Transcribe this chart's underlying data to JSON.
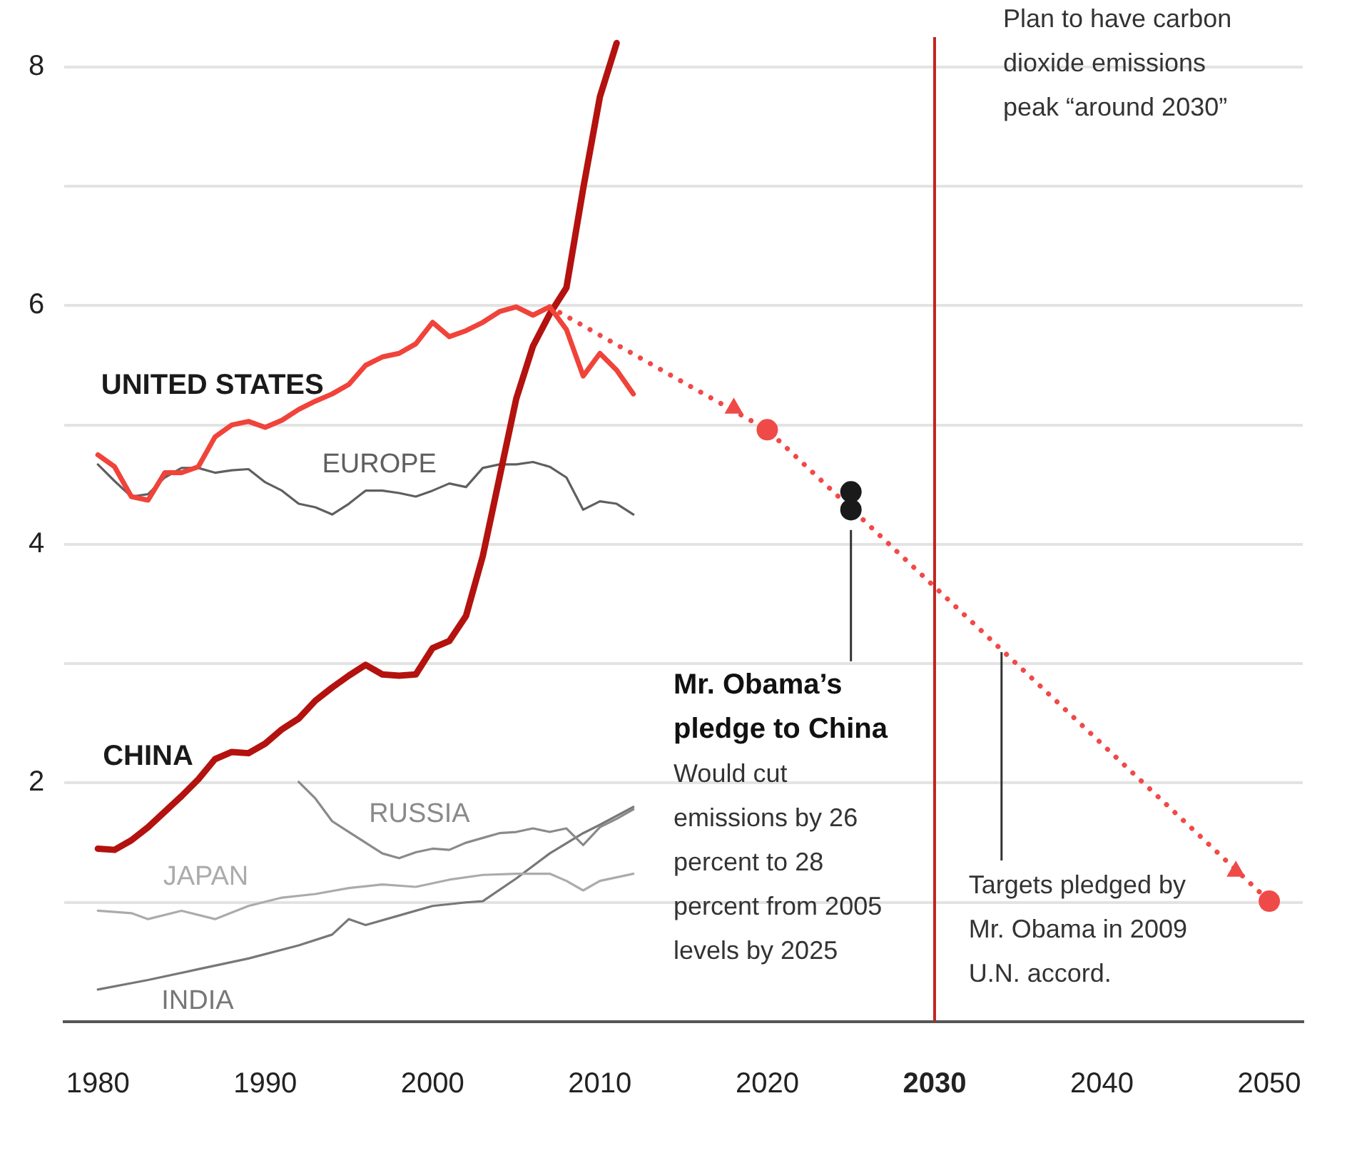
{
  "chart_data": {
    "type": "line",
    "xlim": [
      1978,
      2052
    ],
    "ylim": [
      0,
      8.25
    ],
    "xticks": [
      1980,
      1990,
      2000,
      2010,
      2020,
      2030,
      2040,
      2050
    ],
    "yticks": [
      {
        "value": 0,
        "label": null
      },
      {
        "value": 1,
        "label": null
      },
      2,
      {
        "value": 3,
        "label": null
      },
      4,
      {
        "value": 5,
        "label": null
      },
      6,
      {
        "value": 7,
        "label": null
      },
      8
    ],
    "grid": "y",
    "legend": false,
    "marker": "none",
    "series": [
      {
        "name": "UNITED STATES",
        "color": "#f0433a",
        "x": [
          1980,
          1981,
          1982,
          1983,
          1984,
          1985,
          1986,
          1987,
          1988,
          1989,
          1990,
          1991,
          1992,
          1993,
          1994,
          1995,
          1996,
          1997,
          1998,
          1999,
          2000,
          2001,
          2002,
          2003,
          2004,
          2005,
          2006,
          2007,
          2008,
          2009,
          2010,
          2011,
          2012
        ],
        "values": [
          4.75,
          4.65,
          4.4,
          4.37,
          4.6,
          4.6,
          4.65,
          4.9,
          5.0,
          5.03,
          4.98,
          5.04,
          5.13,
          5.2,
          5.26,
          5.34,
          5.5,
          5.57,
          5.6,
          5.68,
          5.86,
          5.74,
          5.79,
          5.86,
          5.95,
          5.99,
          5.92,
          5.99,
          5.8,
          5.41,
          5.6,
          5.46,
          5.26
        ]
      },
      {
        "name": "CHINA",
        "color": "#b3120f",
        "x": [
          1980,
          1981,
          1982,
          1983,
          1984,
          1985,
          1986,
          1987,
          1988,
          1989,
          1990,
          1991,
          1992,
          1993,
          1994,
          1995,
          1996,
          1997,
          1998,
          1999,
          2000,
          2001,
          2002,
          2003,
          2004,
          2005,
          2006,
          2007,
          2008,
          2009,
          2010,
          2011
        ],
        "values": [
          1.45,
          1.44,
          1.52,
          1.63,
          1.76,
          1.89,
          2.03,
          2.2,
          2.26,
          2.25,
          2.33,
          2.45,
          2.54,
          2.69,
          2.8,
          2.9,
          2.99,
          2.91,
          2.9,
          2.91,
          3.13,
          3.19,
          3.4,
          3.9,
          4.56,
          5.22,
          5.66,
          5.93,
          6.15,
          6.98,
          7.75,
          8.2
        ]
      },
      {
        "name": "EUROPE",
        "color": "#5f5f5f",
        "x": [
          1980,
          1981,
          1982,
          1983,
          1984,
          1985,
          1986,
          1987,
          1988,
          1989,
          1990,
          1991,
          1992,
          1993,
          1994,
          1995,
          1996,
          1997,
          1998,
          1999,
          2000,
          2001,
          2002,
          2003,
          2004,
          2005,
          2006,
          2007,
          2008,
          2009,
          2010,
          2011,
          2012
        ],
        "values": [
          4.67,
          4.53,
          4.4,
          4.42,
          4.56,
          4.64,
          4.64,
          4.6,
          4.62,
          4.63,
          4.52,
          4.45,
          4.34,
          4.31,
          4.25,
          4.34,
          4.45,
          4.45,
          4.43,
          4.4,
          4.45,
          4.51,
          4.48,
          4.64,
          4.67,
          4.67,
          4.69,
          4.65,
          4.56,
          4.29,
          4.36,
          4.34,
          4.25
        ]
      },
      {
        "name": "RUSSIA",
        "color": "#8a8a8a",
        "x": [
          1992,
          1993,
          1994,
          1995,
          1996,
          1997,
          1998,
          1999,
          2000,
          2001,
          2002,
          2003,
          2004,
          2005,
          2006,
          2007,
          2008,
          2009,
          2010,
          2011,
          2012
        ],
        "values": [
          2.01,
          1.87,
          1.68,
          1.59,
          1.5,
          1.41,
          1.37,
          1.42,
          1.45,
          1.44,
          1.5,
          1.54,
          1.58,
          1.59,
          1.62,
          1.59,
          1.62,
          1.48,
          1.63,
          1.7,
          1.78
        ]
      },
      {
        "name": "JAPAN",
        "color": "#ababab",
        "x": [
          1980,
          1982,
          1983,
          1985,
          1987,
          1989,
          1991,
          1993,
          1995,
          1997,
          1999,
          2001,
          2003,
          2005,
          2007,
          2008,
          2009,
          2010,
          2012
        ],
        "values": [
          0.93,
          0.91,
          0.86,
          0.93,
          0.86,
          0.97,
          1.04,
          1.07,
          1.12,
          1.15,
          1.13,
          1.19,
          1.23,
          1.24,
          1.24,
          1.18,
          1.1,
          1.18,
          1.24
        ]
      },
      {
        "name": "INDIA",
        "color": "#777777",
        "x": [
          1980,
          1983,
          1986,
          1989,
          1992,
          1994,
          1995,
          1996,
          1998,
          2000,
          2002,
          2003,
          2005,
          2007,
          2009,
          2010,
          2012
        ],
        "values": [
          0.27,
          0.35,
          0.44,
          0.53,
          0.64,
          0.73,
          0.86,
          0.81,
          0.89,
          0.97,
          1.0,
          1.01,
          1.2,
          1.41,
          1.58,
          1.65,
          1.8
        ]
      },
      {
        "color": "#f04a48",
        "line_style": "dotted",
        "x": [
          2007,
          2020,
          2050
        ],
        "values": [
          5.99,
          4.96,
          1.01
        ]
      },
      {
        "type": "scatter",
        "marker": "circle",
        "color": "#f04a48",
        "x": [
          2020,
          2050
        ],
        "values": [
          4.96,
          1.01
        ]
      },
      {
        "type": "scatter",
        "marker": "triangle",
        "color": "#f04a48",
        "x": [
          2018,
          2048
        ],
        "values": [
          5.14,
          1.26
        ]
      },
      {
        "type": "scatter",
        "marker": "circle",
        "color": "#1a1a1a",
        "x": [
          2025,
          2025
        ],
        "values": [
          4.44,
          4.29
        ]
      }
    ],
    "ref_lines": [
      {
        "axis": "x",
        "value": 2030,
        "label": "Plan to have carbon dioxide emissions peak “around 2030”",
        "color": "#c0261f"
      }
    ],
    "annotations": [
      "Mr. Obama’s pledge to China",
      "Would cut emissions by 26 percent to 28 percent from 2005 levels by 2025",
      {
        "text": "Targets pledged by Mr. Obama in 2009 U.N. accord.",
        "x": 2034,
        "y": 3.12
      }
    ]
  }
}
